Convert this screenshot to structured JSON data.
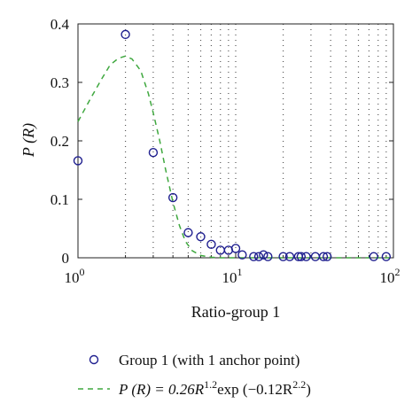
{
  "chart_data": {
    "type": "scatter",
    "title": "",
    "xlabel": "Ratio-group 1",
    "ylabel": "P (R)",
    "xscale": "log",
    "xlim": [
      1,
      100
    ],
    "ylim": [
      0,
      0.4
    ],
    "xticks": [
      {
        "base": "10",
        "exp": "0",
        "value": 1
      },
      {
        "base": "10",
        "exp": "1",
        "value": 10
      },
      {
        "base": "10",
        "exp": "2",
        "value": 100
      }
    ],
    "yticks": [
      {
        "label": "0",
        "value": 0
      },
      {
        "label": "0.1",
        "value": 0.1
      },
      {
        "label": "0.2",
        "value": 0.2
      },
      {
        "label": "0.3",
        "value": 0.3
      },
      {
        "label": "0.4",
        "value": 0.4
      }
    ],
    "gridlines_x": [
      2,
      3,
      4,
      5,
      6,
      7,
      8,
      9,
      10,
      20,
      30,
      40,
      50,
      60,
      70,
      80,
      90
    ],
    "series": [
      {
        "name": "Group 1 (with 1 anchor point)",
        "kind": "scatter",
        "color": "#1f1f8f",
        "points": [
          {
            "x": 1,
            "y": 0.166
          },
          {
            "x": 2,
            "y": 0.382
          },
          {
            "x": 3,
            "y": 0.18
          },
          {
            "x": 4,
            "y": 0.103
          },
          {
            "x": 5,
            "y": 0.043
          },
          {
            "x": 6,
            "y": 0.036
          },
          {
            "x": 7,
            "y": 0.023
          },
          {
            "x": 8,
            "y": 0.013
          },
          {
            "x": 9,
            "y": 0.013
          },
          {
            "x": 10,
            "y": 0.016
          },
          {
            "x": 11,
            "y": 0.005
          },
          {
            "x": 13,
            "y": 0.002
          },
          {
            "x": 14,
            "y": 0.002
          },
          {
            "x": 15,
            "y": 0.005
          },
          {
            "x": 16,
            "y": 0.002
          },
          {
            "x": 20,
            "y": 0.002
          },
          {
            "x": 22,
            "y": 0.002
          },
          {
            "x": 25,
            "y": 0.002
          },
          {
            "x": 26,
            "y": 0.002
          },
          {
            "x": 28,
            "y": 0.002
          },
          {
            "x": 32,
            "y": 0.002
          },
          {
            "x": 36,
            "y": 0.002
          },
          {
            "x": 38,
            "y": 0.002
          },
          {
            "x": 75,
            "y": 0.002
          },
          {
            "x": 90,
            "y": 0.002
          }
        ]
      },
      {
        "name_prefix": "P (R) = 0.26R",
        "name_exp1": "1.2",
        "name_mid": "exp (−0.12R",
        "name_exp2": "2.2",
        "name_suffix": ")",
        "kind": "line",
        "style": "dashed",
        "color": "#3fa83f",
        "points": [
          {
            "x": 1,
            "y": 0.233
          },
          {
            "x": 1.2,
            "y": 0.272
          },
          {
            "x": 1.4,
            "y": 0.304
          },
          {
            "x": 1.6,
            "y": 0.33
          },
          {
            "x": 1.8,
            "y": 0.341
          },
          {
            "x": 2,
            "y": 0.345
          },
          {
            "x": 2.2,
            "y": 0.34
          },
          {
            "x": 2.5,
            "y": 0.32
          },
          {
            "x": 2.8,
            "y": 0.28
          },
          {
            "x": 3,
            "y": 0.248
          },
          {
            "x": 3.3,
            "y": 0.2
          },
          {
            "x": 3.6,
            "y": 0.15
          },
          {
            "x": 4,
            "y": 0.095
          },
          {
            "x": 4.4,
            "y": 0.055
          },
          {
            "x": 4.8,
            "y": 0.028
          },
          {
            "x": 5.3,
            "y": 0.012
          },
          {
            "x": 6,
            "y": 0.004
          },
          {
            "x": 7,
            "y": 0.001
          },
          {
            "x": 8,
            "y": 0
          },
          {
            "x": 100,
            "y": 0
          }
        ]
      }
    ],
    "legend_position": "bottom"
  }
}
